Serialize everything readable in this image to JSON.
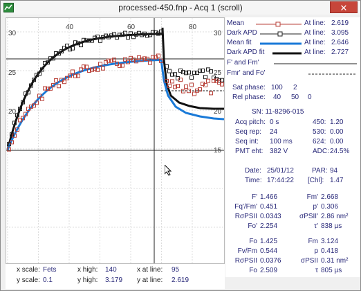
{
  "window": {
    "title": "processed-450.fnp - Acq 1 (scroll)",
    "close_glyph": "✕"
  },
  "plot": {
    "left_ticks": [
      "30",
      "25",
      "20"
    ],
    "right_ticks": [
      "30",
      "25",
      "20",
      "15"
    ],
    "top_ticks": [
      "40",
      "60",
      "80"
    ]
  },
  "legend": [
    {
      "name": "Mean",
      "at_label": "At line:",
      "value": "2.619",
      "color": "#b84038"
    },
    {
      "name": "Dark APD",
      "at_label": "At line:",
      "value": "3.095",
      "color": "#222222"
    },
    {
      "name": "Mean fit",
      "at_label": "At line:",
      "value": "2.646",
      "color": "#1a7ad8"
    },
    {
      "name": "Dark APD fit",
      "at_label": "At line:",
      "value": "2.727",
      "color": "#111111"
    }
  ],
  "markers": {
    "line1": "F' and Fm'",
    "line2": "Fmr' and Fo'"
  },
  "phases": {
    "sat_label": "Sat phase:",
    "sat_values": [
      "100",
      "2"
    ],
    "rel_label": "Rel phase:",
    "rel_values": [
      "40",
      "50",
      "0"
    ]
  },
  "info": {
    "sn": "SN: 11-8296-015",
    "rows": [
      {
        "label": "Acq pitch:",
        "value": "0 s",
        "label2": "450:",
        "value2": "1.20"
      },
      {
        "label": "Seq rep:",
        "value": "24",
        "label2": "530:",
        "value2": "0.00"
      },
      {
        "label": "Seq int:",
        "value": "100 ms",
        "label2": "624:",
        "value2": "0.00"
      },
      {
        "label": "PMT eht:",
        "value": "382 V",
        "label2": "ADC:",
        "value2": "24.5%"
      }
    ],
    "date_label": "Date:",
    "date": "25/01/12",
    "par_label": "PAR:",
    "par": "94",
    "time_label": "Time:",
    "time": "17:44:22",
    "chl_label": "[Chl]:",
    "chl": "1.47"
  },
  "params1": [
    {
      "label": "F'",
      "value": "1.466",
      "label2": "Fm'",
      "value2": "2.668"
    },
    {
      "label": "Fq'/Fm'",
      "value": "0.451",
      "label2": "p'",
      "value2": "0.306"
    },
    {
      "label": "RσPSII",
      "value": "0.0343",
      "label2": "σPSII'",
      "value2": "2.86 nm²"
    },
    {
      "label": "Fo'",
      "value": "2.254",
      "label2": "τ'",
      "value2": "838 µs"
    }
  ],
  "params2": [
    {
      "label": "Fo",
      "value": "1.425",
      "label2": "Fm",
      "value2": "3.124"
    },
    {
      "label": "Fv/Fm",
      "value": "0.544",
      "label2": "p",
      "value2": "0.418"
    },
    {
      "label": "RσPSII",
      "value": "0.0376",
      "label2": "σPSII",
      "value2": "0.31 nm²"
    },
    {
      "label": "Fo",
      "value": "2.509",
      "label2": "τ",
      "value2": "805 µs"
    }
  ],
  "status": {
    "x_scale_label": "x scale:",
    "x_scale": "Fets",
    "y_scale_label": "y scale:",
    "y_scale": "0.1",
    "x_high_label": "x high:",
    "x_high": "140",
    "y_high_label": "y high:",
    "y_high": "3.179",
    "x_at_line_label": "x at line:",
    "x_at_line": "95",
    "y_at_line_label": "y at line:",
    "y_at_line": "2.619"
  }
}
